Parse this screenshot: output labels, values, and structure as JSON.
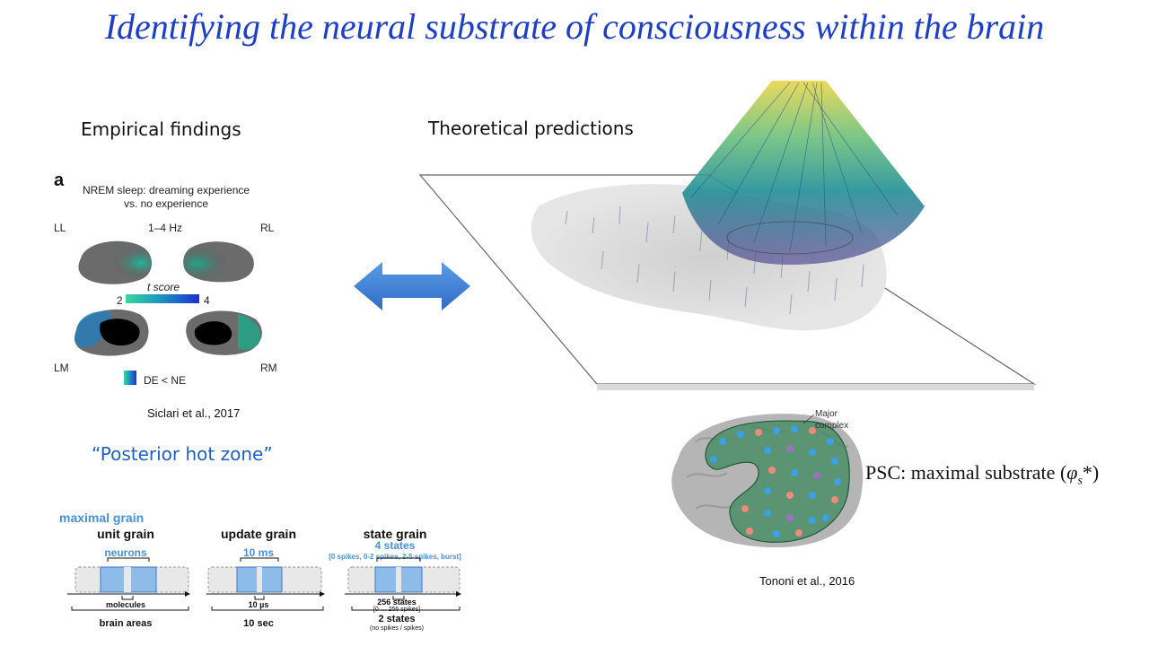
{
  "title": "Identifying the neural substrate of consciousness within the brain",
  "left": {
    "heading": "Empirical findings",
    "panel_letter": "a",
    "panel_title_1": "NREM sleep: dreaming experience",
    "panel_title_2": "vs. no experience",
    "band": "1–4 Hz",
    "labels": {
      "ll": "LL",
      "rl": "RL",
      "lm": "LM",
      "rm": "RM"
    },
    "colorbar": {
      "label": "t score",
      "min": "2",
      "max": "4"
    },
    "legend": "DE < NE",
    "citation": "Siclari et al., 2017",
    "quote": "“Posterior hot zone”"
  },
  "grains": {
    "max_label": "maximal grain",
    "items": [
      {
        "header": "unit grain",
        "best": "neurons",
        "sub": "",
        "below": "molecules",
        "below_sub": "",
        "bottom": "brain areas",
        "bottom_sub": ""
      },
      {
        "header": "update grain",
        "best": "10 ms",
        "sub": "",
        "below": "10 µs",
        "below_sub": "",
        "bottom": "10 sec",
        "bottom_sub": ""
      },
      {
        "header": "state grain",
        "best": "4 states",
        "sub": "[0 spikes, 0-2 spikes, 2-5 spikes, burst]",
        "below": "256 states",
        "below_sub": "[0 … 256 spikes]",
        "bottom": "2 states",
        "bottom_sub": "(no spikes / spikes)"
      }
    ]
  },
  "right": {
    "heading": "Theoretical predictions",
    "brain_label_1": "Major",
    "brain_label_2": "complex",
    "psc_text": "PSC: maximal substrate (",
    "psc_symbol": "φ",
    "psc_sub": "s",
    "psc_end": "*)",
    "citation": "Tononi et al., 2016"
  },
  "colors": {
    "title": "#1e3fc4",
    "arrow": "#3f7fd6",
    "quote": "#1f5fbf",
    "grain_blue": "#4a90d9",
    "complex_fill": "#3e8a5e"
  }
}
